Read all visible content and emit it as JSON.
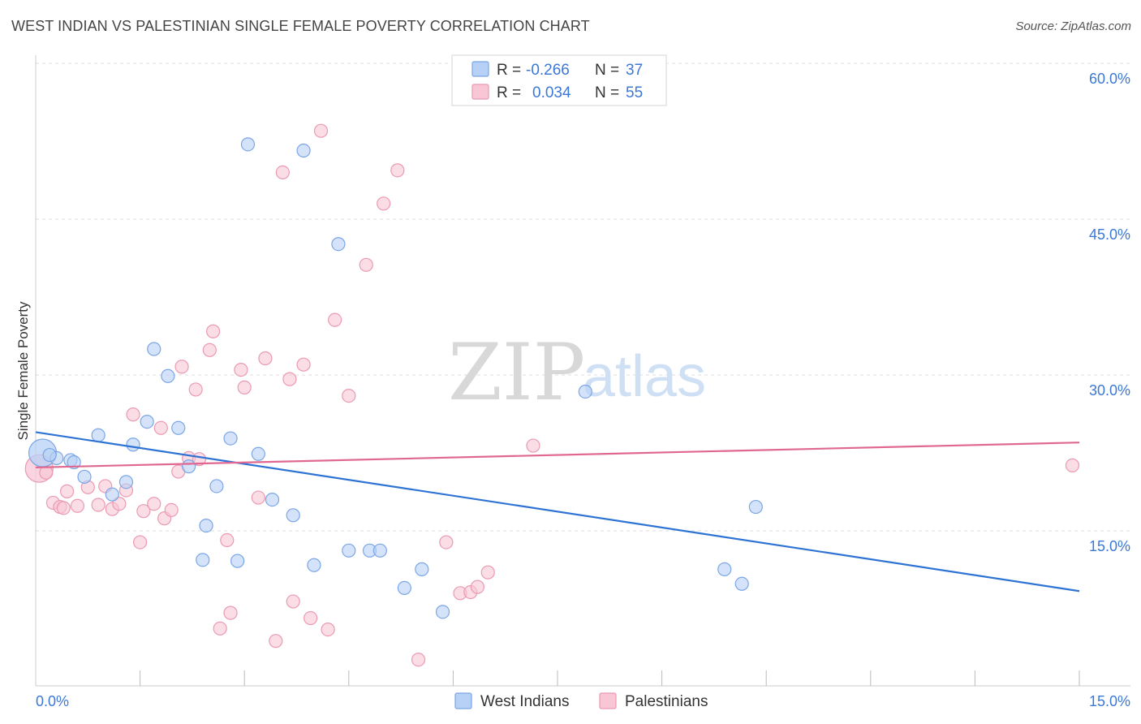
{
  "title": "WEST INDIAN VS PALESTINIAN SINGLE FEMALE POVERTY CORRELATION CHART",
  "source": "Source: ZipAtlas.com",
  "watermark": {
    "zip": "ZIP",
    "atlas": "atlas"
  },
  "colors": {
    "blue_fill": "#b7d0f5",
    "blue_stroke": "#7aa6e6",
    "blue_line": "#2e73d4",
    "pink_fill": "#f8c6d5",
    "pink_stroke": "#ea9ab3",
    "pink_line": "#e06890",
    "grid": "#dddddd",
    "tick_text": "#3b78d6"
  },
  "legend_top": {
    "rows": [
      {
        "r_label": "R = ",
        "r_value": "-0.266",
        "n_label": "N = ",
        "n_value": "37"
      },
      {
        "r_label": "R = ",
        "r_value": "0.034",
        "n_label": "N = ",
        "n_value": "55"
      }
    ]
  },
  "legend_bottom": [
    "West Indians",
    "Palestinians"
  ],
  "chart_data": {
    "type": "scatter",
    "title": "WEST INDIAN VS PALESTINIAN SINGLE FEMALE POVERTY CORRELATION CHART",
    "xlabel": "",
    "ylabel": "Single Female Poverty",
    "xlim": [
      0,
      15
    ],
    "ylim": [
      0,
      60
    ],
    "x_tick_labels": [
      "0.0%",
      "15.0%"
    ],
    "y_ticks": [
      15,
      30,
      45,
      60
    ],
    "y_tick_labels": [
      "15.0%",
      "30.0%",
      "45.0%",
      "60.0%"
    ],
    "grid": true,
    "legend_position": "top-center",
    "series": [
      {
        "name": "West Indians",
        "R": -0.266,
        "N": 37,
        "trend": {
          "x": [
            0,
            15
          ],
          "y": [
            24.5,
            9.2
          ]
        },
        "points": [
          {
            "x": 0.1,
            "y": 22.5,
            "big": true
          },
          {
            "x": 0.3,
            "y": 22.0
          },
          {
            "x": 0.2,
            "y": 22.3
          },
          {
            "x": 0.5,
            "y": 21.8
          },
          {
            "x": 0.9,
            "y": 24.2
          },
          {
            "x": 0.7,
            "y": 20.2
          },
          {
            "x": 1.1,
            "y": 18.5
          },
          {
            "x": 1.3,
            "y": 19.7
          },
          {
            "x": 1.4,
            "y": 23.3
          },
          {
            "x": 1.6,
            "y": 25.5
          },
          {
            "x": 1.7,
            "y": 32.5
          },
          {
            "x": 1.9,
            "y": 29.9
          },
          {
            "x": 2.05,
            "y": 24.9
          },
          {
            "x": 2.2,
            "y": 21.2
          },
          {
            "x": 2.4,
            "y": 12.2
          },
          {
            "x": 2.45,
            "y": 15.5
          },
          {
            "x": 2.6,
            "y": 19.3
          },
          {
            "x": 2.8,
            "y": 23.9
          },
          {
            "x": 2.9,
            "y": 12.1
          },
          {
            "x": 3.05,
            "y": 52.2
          },
          {
            "x": 3.2,
            "y": 22.4
          },
          {
            "x": 3.4,
            "y": 18.0
          },
          {
            "x": 3.7,
            "y": 16.5
          },
          {
            "x": 3.85,
            "y": 51.6
          },
          {
            "x": 4.0,
            "y": 11.7
          },
          {
            "x": 4.35,
            "y": 42.6
          },
          {
            "x": 4.5,
            "y": 13.1
          },
          {
            "x": 4.8,
            "y": 13.1
          },
          {
            "x": 4.95,
            "y": 13.1
          },
          {
            "x": 5.3,
            "y": 9.5
          },
          {
            "x": 5.55,
            "y": 11.3
          },
          {
            "x": 5.85,
            "y": 7.2
          },
          {
            "x": 7.9,
            "y": 28.4
          },
          {
            "x": 9.9,
            "y": 11.3
          },
          {
            "x": 10.15,
            "y": 9.9
          },
          {
            "x": 10.35,
            "y": 17.3
          },
          {
            "x": 0.55,
            "y": 21.6
          }
        ]
      },
      {
        "name": "Palestinians",
        "R": 0.034,
        "N": 55,
        "trend": {
          "x": [
            0,
            15
          ],
          "y": [
            21.1,
            23.5
          ]
        },
        "points": [
          {
            "x": 0.05,
            "y": 21.0,
            "big": true
          },
          {
            "x": 0.25,
            "y": 17.7
          },
          {
            "x": 0.35,
            "y": 17.3
          },
          {
            "x": 0.45,
            "y": 18.8
          },
          {
            "x": 0.6,
            "y": 17.4
          },
          {
            "x": 0.75,
            "y": 19.2
          },
          {
            "x": 0.9,
            "y": 17.5
          },
          {
            "x": 1.0,
            "y": 19.3
          },
          {
            "x": 1.1,
            "y": 17.1
          },
          {
            "x": 1.2,
            "y": 17.6
          },
          {
            "x": 1.3,
            "y": 18.9
          },
          {
            "x": 1.4,
            "y": 26.2
          },
          {
            "x": 1.5,
            "y": 13.9
          },
          {
            "x": 1.55,
            "y": 16.9
          },
          {
            "x": 1.7,
            "y": 17.6
          },
          {
            "x": 1.8,
            "y": 24.9
          },
          {
            "x": 1.85,
            "y": 16.2
          },
          {
            "x": 1.95,
            "y": 17.0
          },
          {
            "x": 2.05,
            "y": 20.7
          },
          {
            "x": 2.1,
            "y": 30.8
          },
          {
            "x": 2.2,
            "y": 22.0
          },
          {
            "x": 2.3,
            "y": 28.6
          },
          {
            "x": 2.35,
            "y": 21.9
          },
          {
            "x": 2.5,
            "y": 32.4
          },
          {
            "x": 2.55,
            "y": 34.2
          },
          {
            "x": 2.65,
            "y": 5.6
          },
          {
            "x": 2.75,
            "y": 14.1
          },
          {
            "x": 2.8,
            "y": 7.1
          },
          {
            "x": 2.95,
            "y": 30.5
          },
          {
            "x": 3.0,
            "y": 28.8
          },
          {
            "x": 3.2,
            "y": 18.2
          },
          {
            "x": 3.3,
            "y": 31.6
          },
          {
            "x": 3.45,
            "y": 4.4
          },
          {
            "x": 3.55,
            "y": 49.5
          },
          {
            "x": 3.65,
            "y": 29.6
          },
          {
            "x": 3.7,
            "y": 8.2
          },
          {
            "x": 3.85,
            "y": 31.0
          },
          {
            "x": 3.95,
            "y": 6.6
          },
          {
            "x": 4.1,
            "y": 53.5
          },
          {
            "x": 4.2,
            "y": 5.5
          },
          {
            "x": 4.3,
            "y": 35.3
          },
          {
            "x": 4.5,
            "y": 28.0
          },
          {
            "x": 4.75,
            "y": 40.6
          },
          {
            "x": 5.0,
            "y": 46.5
          },
          {
            "x": 5.2,
            "y": 49.7
          },
          {
            "x": 5.5,
            "y": 2.6
          },
          {
            "x": 5.9,
            "y": 13.9
          },
          {
            "x": 6.1,
            "y": 9.0
          },
          {
            "x": 6.25,
            "y": 9.1
          },
          {
            "x": 6.35,
            "y": 9.6
          },
          {
            "x": 6.5,
            "y": 11.0
          },
          {
            "x": 7.15,
            "y": 23.2
          },
          {
            "x": 14.9,
            "y": 21.3
          },
          {
            "x": 0.15,
            "y": 20.6
          },
          {
            "x": 0.4,
            "y": 17.2
          }
        ]
      }
    ]
  }
}
